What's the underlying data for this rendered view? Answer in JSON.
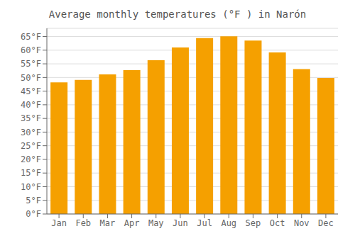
{
  "chart_data": {
    "type": "bar",
    "title": "Average monthly temperatures (°F ) in Narón",
    "categories": [
      "Jan",
      "Feb",
      "Mar",
      "Apr",
      "May",
      "Jun",
      "Jul",
      "Aug",
      "Sep",
      "Oct",
      "Nov",
      "Dec"
    ],
    "values": [
      48.2,
      49.1,
      51.1,
      52.7,
      56.3,
      61.0,
      64.4,
      65.1,
      63.5,
      59.2,
      53.1,
      49.8
    ],
    "color": "#F5A000",
    "ylim": [
      0,
      68
    ],
    "yticks": [
      {
        "value": 0,
        "label": "0°F"
      },
      {
        "value": 5,
        "label": "5°F"
      },
      {
        "value": 10,
        "label": "10°F"
      },
      {
        "value": 15,
        "label": "15°F"
      },
      {
        "value": 20,
        "label": "20°F"
      },
      {
        "value": 25,
        "label": "25°F"
      },
      {
        "value": 30,
        "label": "30°F"
      },
      {
        "value": 35,
        "label": "35°F"
      },
      {
        "value": 40,
        "label": "40°F"
      },
      {
        "value": 45,
        "label": "45°F"
      },
      {
        "value": 50,
        "label": "50°F"
      },
      {
        "value": 55,
        "label": "55°F"
      },
      {
        "value": 60,
        "label": "60°F"
      },
      {
        "value": 65,
        "label": "65°F"
      }
    ],
    "grid": true
  }
}
